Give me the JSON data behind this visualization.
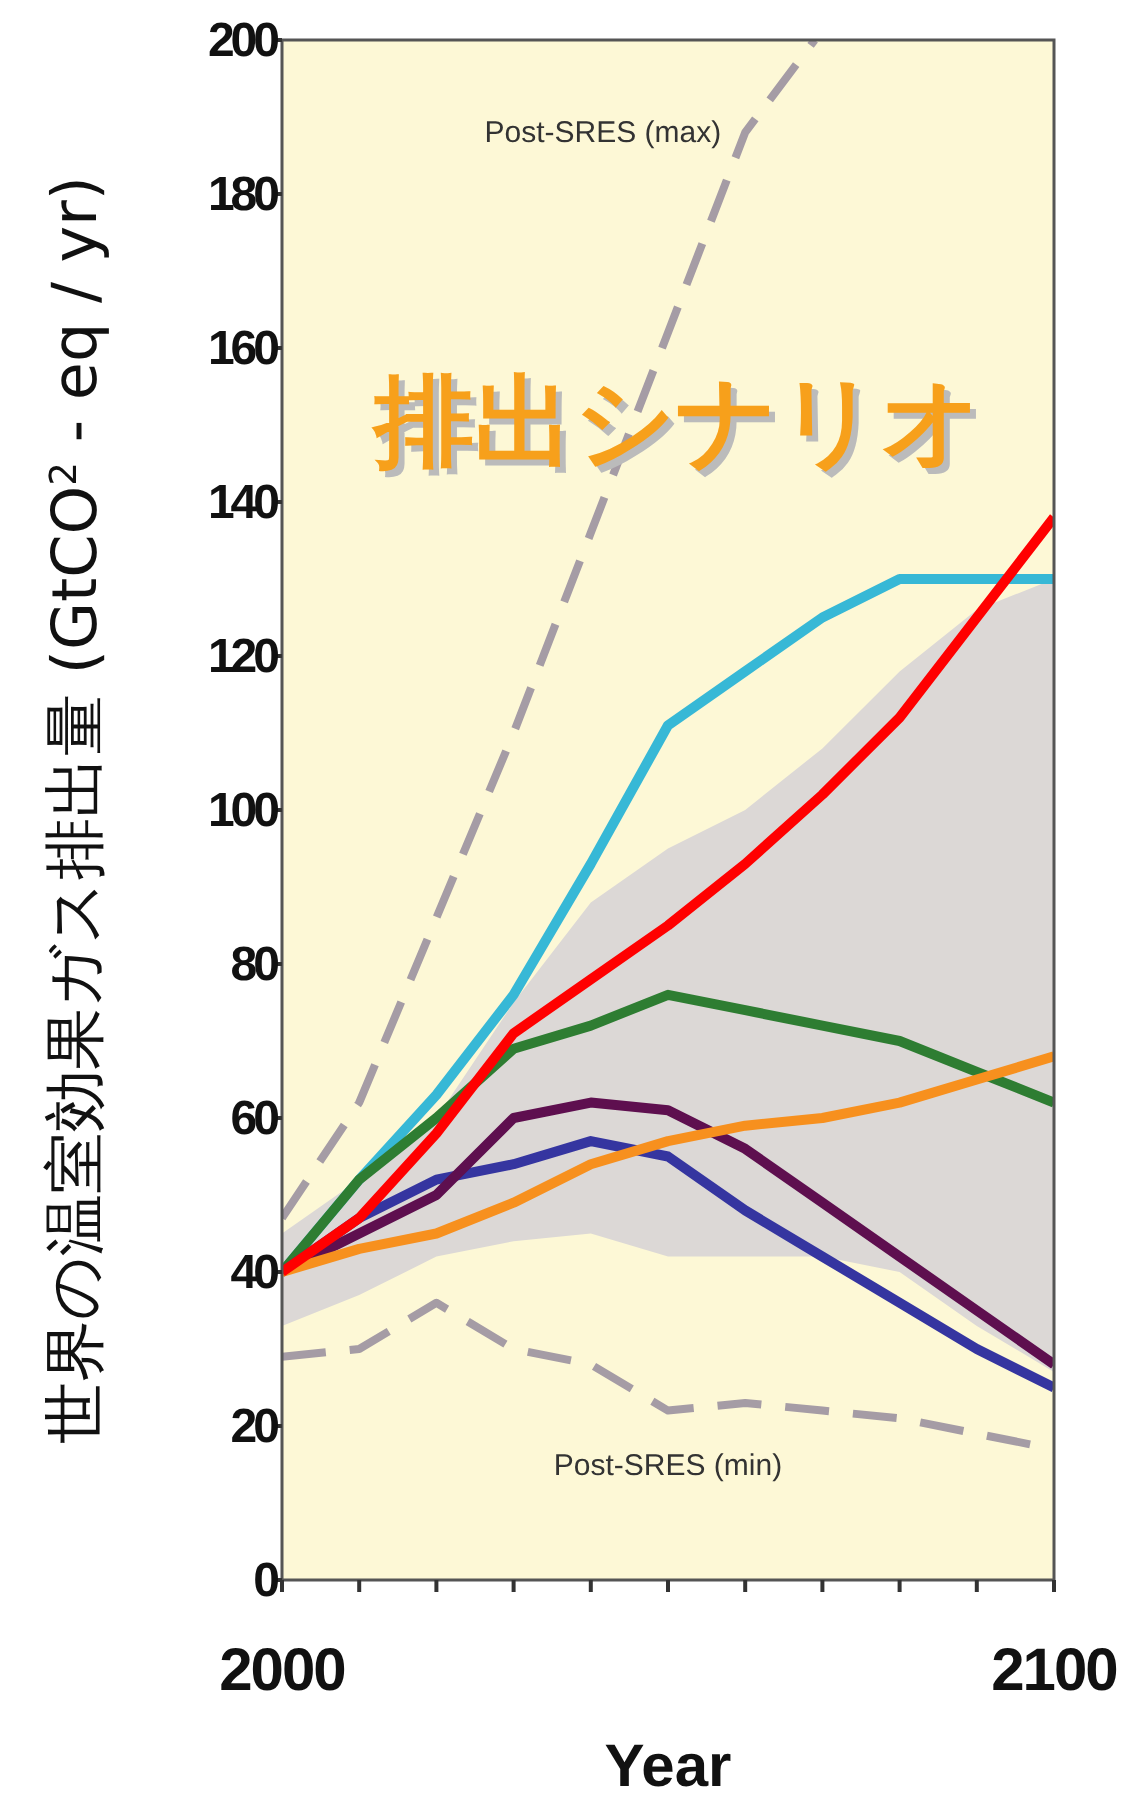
{
  "chart_data": {
    "type": "line",
    "title": "排出シナリオ",
    "xlabel": "Year",
    "ylabel": "世界の温室効果ガス排出量 (GtCO$^{2}$ - eq / yr)",
    "x": [
      2000,
      2010,
      2020,
      2030,
      2040,
      2050,
      2060,
      2070,
      2080,
      2090,
      2100
    ],
    "xlim": [
      2000,
      2100
    ],
    "xticks": [
      2000,
      {
        "value": 2010,
        "label": null
      },
      {
        "value": 2020,
        "label": null
      },
      {
        "value": 2030,
        "label": null
      },
      {
        "value": 2040,
        "label": null
      },
      {
        "value": 2050,
        "label": null
      },
      {
        "value": 2060,
        "label": null
      },
      {
        "value": 2070,
        "label": null
      },
      {
        "value": 2080,
        "label": null
      },
      {
        "value": 2090,
        "label": null
      },
      2100
    ],
    "ylim": [
      0,
      200
    ],
    "yticks": [
      0,
      20,
      40,
      60,
      80,
      100,
      120,
      140,
      160,
      180,
      200
    ],
    "grid": false,
    "line_style": "solid",
    "series": [
      {
        "type": "line",
        "color": "#dcd8d6",
        "values": [
          null,
          null,
          null,
          null,
          null,
          null,
          null,
          null,
          null,
          null,
          null
        ],
        "lower": [
          33,
          37,
          42,
          44,
          45,
          42,
          42,
          42,
          40,
          33,
          27
        ],
        "upper": [
          45,
          52,
          60,
          75,
          88,
          95,
          100,
          108,
          118,
          126,
          130
        ]
      },
      {
        "name": "Post-SRES (max)",
        "color": "#a59ca5",
        "line_style": "dashed",
        "x": [
          2000,
          2010,
          2020,
          2030,
          2040,
          2050,
          2060,
          2069
        ],
        "values": [
          47,
          62,
          86,
          110,
          136,
          162,
          188,
          200
        ]
      },
      {
        "name": "Post-SRES (min)",
        "color": "#a59ca5",
        "line_style": "dashed",
        "values": [
          29,
          30,
          36,
          30,
          28,
          22,
          23,
          22,
          21,
          19,
          17
        ]
      },
      {
        "color": "#37b8d6",
        "values": [
          40,
          52,
          63,
          76,
          93,
          111,
          118,
          125,
          130,
          130,
          130
        ]
      },
      {
        "color": "#2e7d32",
        "values": [
          40,
          52,
          60,
          69,
          72,
          76,
          74,
          72,
          70,
          66,
          62
        ]
      },
      {
        "color": "#3535a0",
        "values": [
          40,
          47,
          52,
          54,
          57,
          55,
          48,
          42,
          36,
          30,
          25
        ]
      },
      {
        "color": "#5e0f4f",
        "values": [
          40,
          45,
          50,
          60,
          62,
          61,
          56,
          49,
          42,
          35,
          28
        ]
      },
      {
        "color": "#f7901e",
        "values": [
          40,
          43,
          45,
          49,
          54,
          57,
          59,
          60,
          62,
          65,
          68
        ]
      },
      {
        "color": "#ff0000",
        "values": [
          40,
          47,
          58,
          71,
          78,
          85,
          93,
          102,
          112,
          125,
          138
        ]
      }
    ]
  }
}
